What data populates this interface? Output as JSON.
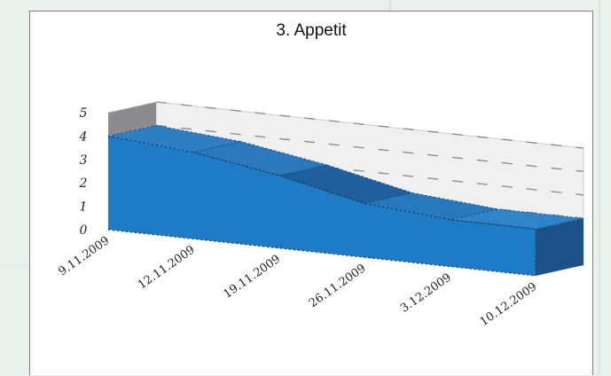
{
  "colors": {
    "page_background": "#e9f1ec",
    "plot_background": "#ffffff",
    "area_front": "#1e7cc6",
    "area_top": "#2a7fc4",
    "area_side": "#1c5288",
    "back_wall": "#f0f0f0",
    "left_wall": "#8c8c8e"
  },
  "chart_data": {
    "type": "area",
    "style": "3d",
    "title": "3. Appetit",
    "xlabel": "",
    "ylabel": "",
    "categories": [
      "9.11.2009",
      "12.11.2009",
      "19.11.2009",
      "26.11.2009",
      "3.12.2009",
      "10.12.2009"
    ],
    "values": [
      4,
      3.7,
      3.1,
      2.3,
      2.0,
      2.0
    ],
    "ylim": [
      0,
      5
    ],
    "yticks": [
      "0",
      "1",
      "2",
      "3",
      "4",
      "5"
    ],
    "grid": true,
    "legend": "none"
  }
}
